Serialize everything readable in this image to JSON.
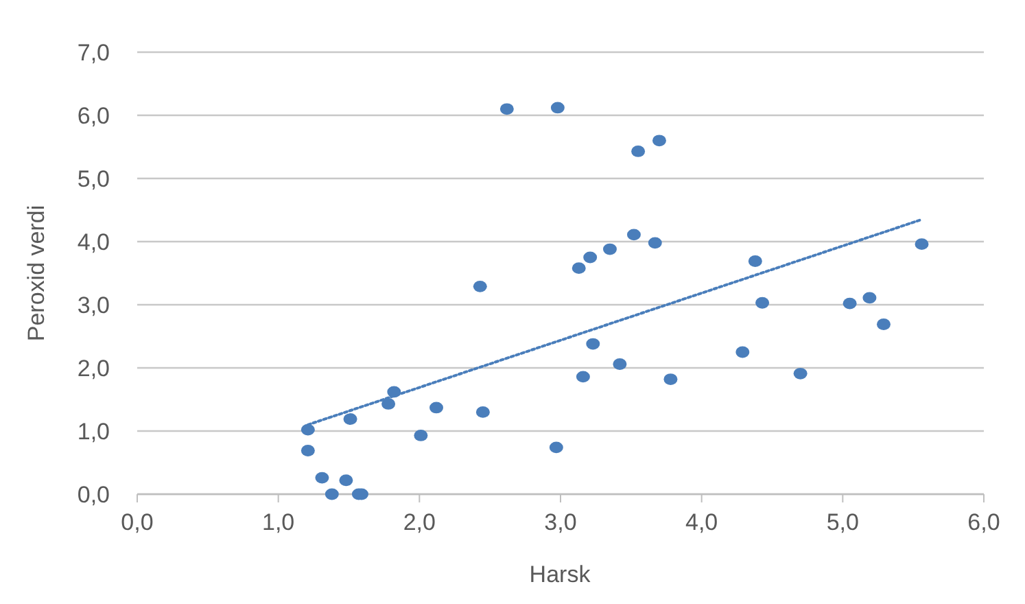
{
  "chart_data": {
    "type": "scatter",
    "xlabel": "Harsk",
    "ylabel": "Peroxid verdi",
    "grid": "y",
    "xlim": [
      0,
      6
    ],
    "ylim": [
      0,
      7
    ],
    "xticks": [
      {
        "value": 0,
        "label": "0,0"
      },
      {
        "value": 1,
        "label": "1,0"
      },
      {
        "value": 2,
        "label": "2,0"
      },
      {
        "value": 3,
        "label": "3,0"
      },
      {
        "value": 4,
        "label": "4,0"
      },
      {
        "value": 5,
        "label": "5,0"
      },
      {
        "value": 6,
        "label": "6,0"
      }
    ],
    "yticks": [
      {
        "value": 0,
        "label": "0,0"
      },
      {
        "value": 1,
        "label": "1,0"
      },
      {
        "value": 2,
        "label": "2,0"
      },
      {
        "value": 3,
        "label": "3,0"
      },
      {
        "value": 4,
        "label": "4,0"
      },
      {
        "value": 5,
        "label": "5,0"
      },
      {
        "value": 6,
        "label": "6,0"
      },
      {
        "value": 7,
        "label": "7,0"
      }
    ],
    "series": [
      {
        "color": "#4a7ebb",
        "marker": "circle",
        "x": [
          1.21,
          1.21,
          1.31,
          1.38,
          1.48,
          1.57,
          1.59,
          1.51,
          1.78,
          1.82,
          2.01,
          2.12,
          2.43,
          2.45,
          2.62,
          2.98,
          2.97,
          3.13,
          3.21,
          3.35,
          3.16,
          3.23,
          3.42,
          3.52,
          3.55,
          3.67,
          3.7,
          3.78,
          4.29,
          4.38,
          4.43,
          4.7,
          5.05,
          5.19,
          5.29,
          5.56
        ],
        "values": [
          1.02,
          0.69,
          0.26,
          0.0,
          0.22,
          0.0,
          0.0,
          1.19,
          1.43,
          1.62,
          0.93,
          1.37,
          3.29,
          1.3,
          6.1,
          6.12,
          0.74,
          3.58,
          3.75,
          3.88,
          1.86,
          2.38,
          2.06,
          4.11,
          5.43,
          3.98,
          5.6,
          1.82,
          2.25,
          3.69,
          3.03,
          1.91,
          3.02,
          3.11,
          2.69,
          3.96
        ]
      },
      {
        "type": "line",
        "color": "#4a7ebb",
        "line_style": "dotted",
        "x": [
          1.21,
          5.56
        ],
        "values": [
          1.1,
          4.35
        ]
      }
    ]
  }
}
